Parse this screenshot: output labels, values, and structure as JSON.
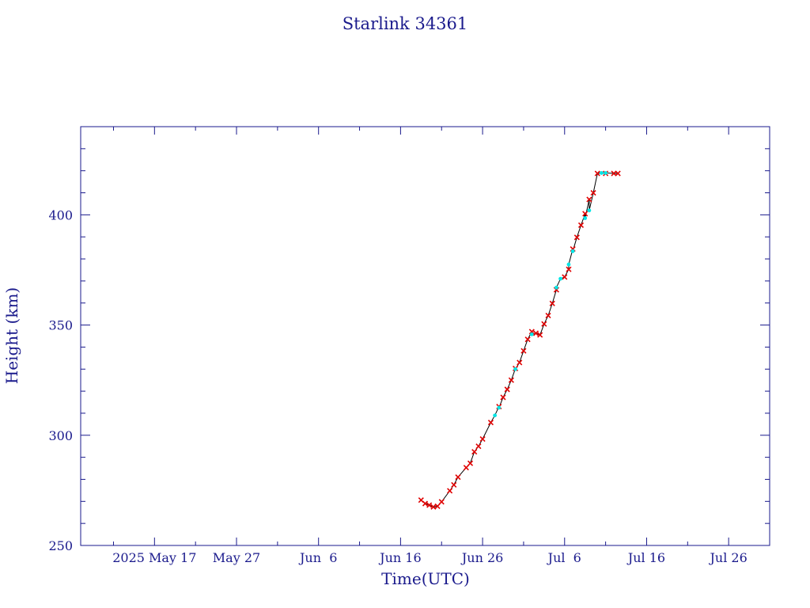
{
  "chart_data": {
    "type": "line",
    "title": "Starlink 34361",
    "xlabel": "Time(UTC)",
    "ylabel": "Height (km)",
    "xlim": [
      "2025-05-08",
      "2025-07-31"
    ],
    "ylim": [
      250,
      440
    ],
    "x_tick_labels": [
      "2025 May 17",
      "May 27",
      "Jun  6",
      "Jun 16",
      "Jun 26",
      "Jul  6",
      "Jul 16",
      "Jul 26"
    ],
    "x_tick_dates": [
      "2025-05-17",
      "2025-05-27",
      "2025-06-06",
      "2025-06-16",
      "2025-06-26",
      "2025-07-06",
      "2025-07-16",
      "2025-07-26"
    ],
    "y_ticks": [
      250,
      300,
      350,
      400
    ],
    "colors": {
      "axis": "#1a1a8c",
      "line": "#000000",
      "marker_primary": "#e00000",
      "marker_secondary": "#00e5e5"
    },
    "series": [
      {
        "marker": "x",
        "color": "#e00000",
        "points": [
          [
            "2025-06-18T12:00",
            270.6
          ],
          [
            "2025-06-19T00:00",
            269.0
          ],
          [
            "2025-06-19T12:00",
            268.3
          ],
          [
            "2025-06-20T00:00",
            267.5
          ],
          [
            "2025-06-20T12:00",
            267.8
          ],
          [
            "2025-06-21T00:00",
            269.8
          ],
          [
            "2025-06-22T00:00",
            274.8
          ],
          [
            "2025-06-22T12:00",
            277.5
          ],
          [
            "2025-06-23T00:00",
            281.0
          ],
          [
            "2025-06-24T00:00",
            285.3
          ],
          [
            "2025-06-24T12:00",
            287.3
          ],
          [
            "2025-06-25T00:00",
            292.5
          ],
          [
            "2025-06-25T12:00",
            295.0
          ],
          [
            "2025-06-26T00:00",
            298.3
          ],
          [
            "2025-06-27T00:00",
            305.8
          ],
          [
            "2025-06-28T00:00",
            313.0
          ],
          [
            "2025-06-28T12:00",
            317.2
          ],
          [
            "2025-06-29T00:00",
            320.8
          ],
          [
            "2025-06-29T12:00",
            325.0
          ],
          [
            "2025-06-30T00:00",
            330.3
          ],
          [
            "2025-06-30T12:00",
            333.0
          ],
          [
            "2025-07-01T00:00",
            338.3
          ],
          [
            "2025-07-01T12:00",
            343.5
          ],
          [
            "2025-07-02T00:00",
            347.0
          ],
          [
            "2025-07-02T12:00",
            346.3
          ],
          [
            "2025-07-03T00:00",
            345.5
          ],
          [
            "2025-07-03T12:00",
            350.5
          ],
          [
            "2025-07-04T00:00",
            354.3
          ],
          [
            "2025-07-04T12:00",
            359.8
          ],
          [
            "2025-07-05T00:00",
            366.0
          ],
          [
            "2025-07-06T00:00",
            371.8
          ],
          [
            "2025-07-06T12:00",
            375.3
          ],
          [
            "2025-07-07T00:00",
            384.5
          ],
          [
            "2025-07-07T12:00",
            389.8
          ],
          [
            "2025-07-08T00:00",
            395.3
          ],
          [
            "2025-07-08T12:00",
            400.5
          ],
          [
            "2025-07-09T00:00",
            407.0
          ],
          [
            "2025-07-09T12:00",
            410.0
          ],
          [
            "2025-07-10T00:00",
            418.8
          ],
          [
            "2025-07-11T00:00",
            418.8
          ],
          [
            "2025-07-12T00:00",
            418.8
          ],
          [
            "2025-07-12T12:00",
            418.8
          ]
        ]
      },
      {
        "marker": "dot",
        "color": "#00e5e5",
        "points": [
          [
            "2025-06-27T12:00",
            309.0
          ],
          [
            "2025-06-28T00:00",
            312.5
          ],
          [
            "2025-06-30T00:00",
            330.0
          ],
          [
            "2025-07-02T00:00",
            345.8
          ],
          [
            "2025-07-05T00:00",
            367.0
          ],
          [
            "2025-07-05T12:00",
            371.0
          ],
          [
            "2025-07-06T12:00",
            377.5
          ],
          [
            "2025-07-07T00:00",
            383.5
          ],
          [
            "2025-07-08T12:00",
            398.5
          ],
          [
            "2025-07-09T00:00",
            402.0
          ],
          [
            "2025-07-10T12:00",
            419.0
          ],
          [
            "2025-07-11T00:00",
            419.0
          ]
        ]
      }
    ]
  }
}
